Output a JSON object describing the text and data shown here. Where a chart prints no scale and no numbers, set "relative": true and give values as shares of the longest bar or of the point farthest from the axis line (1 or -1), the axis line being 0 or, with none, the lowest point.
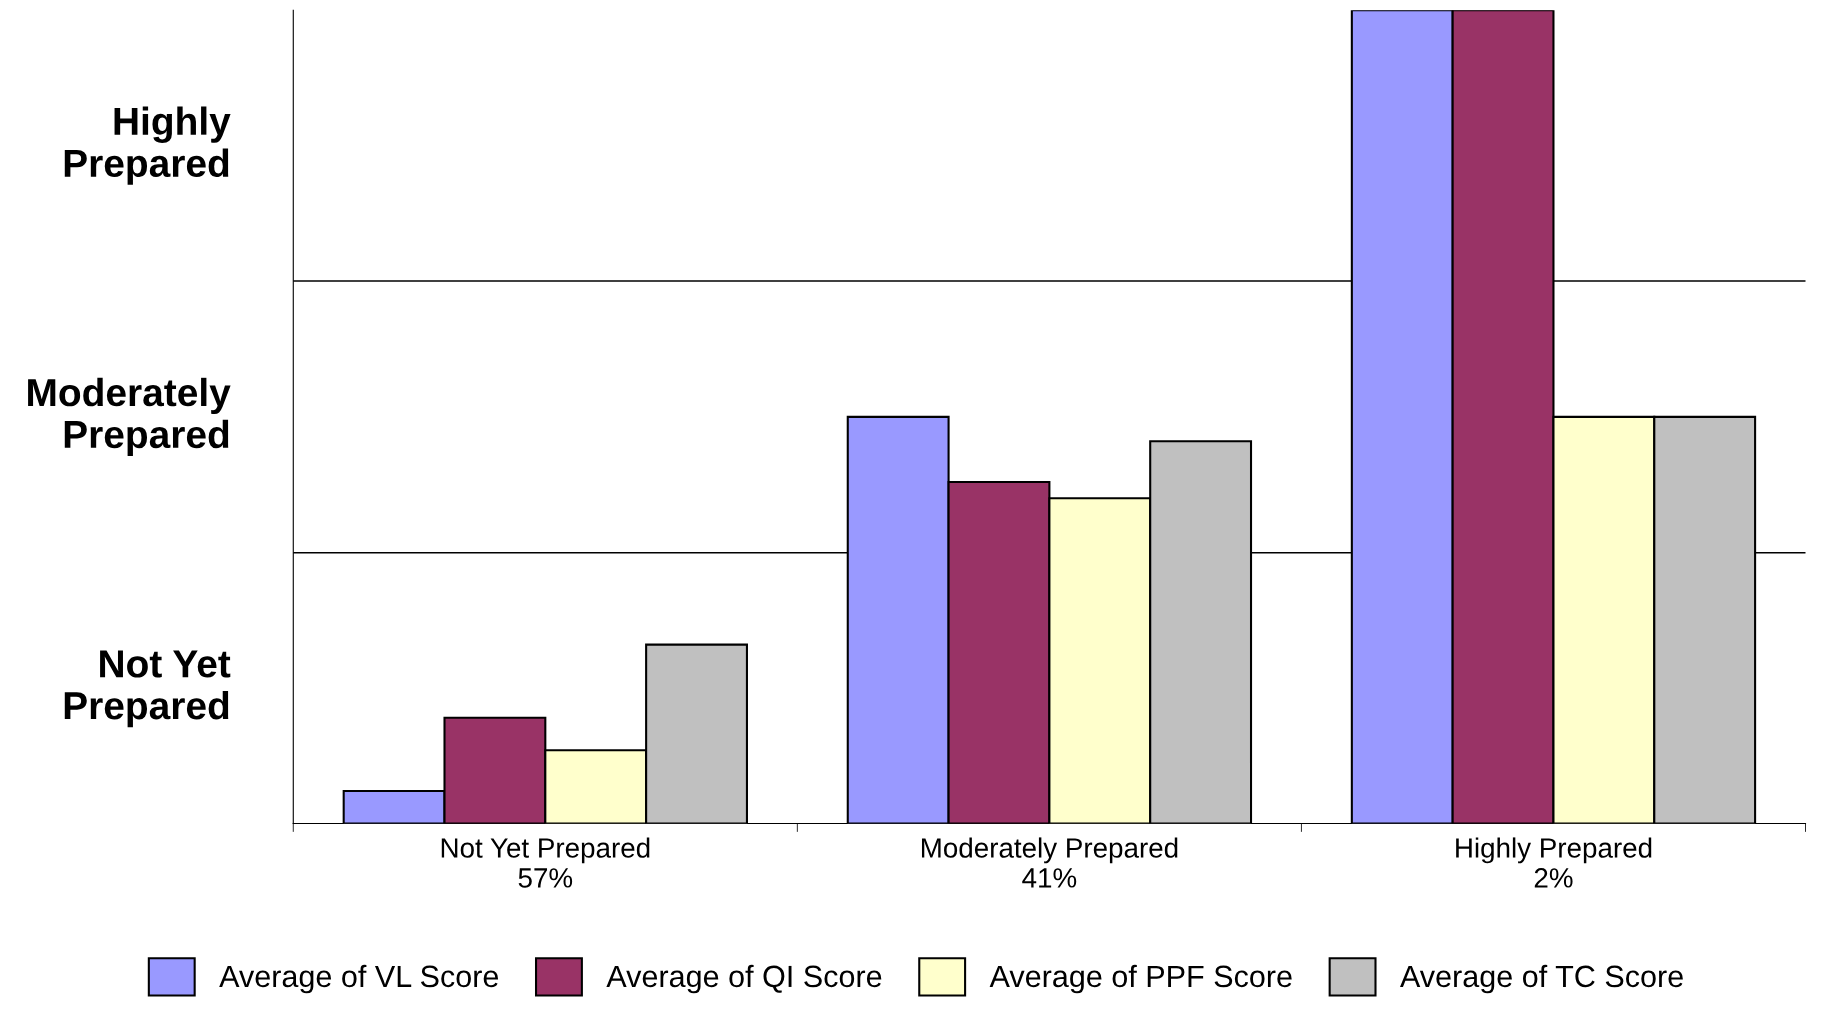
{
  "chart_data": {
    "type": "bar",
    "relative": true,
    "categories": [
      "Not Yet Prepared\n57%",
      "Moderately Prepared\n41%",
      "Highly Prepared\n2%"
    ],
    "series": [
      {
        "name": "Average of VL Score",
        "color": "#9999ff",
        "values": [
          0.04,
          0.5,
          1
        ]
      },
      {
        "name": "Average of QI Score",
        "color": "#993366",
        "values": [
          0.13,
          0.42,
          1
        ]
      },
      {
        "name": "Average of PPF Score",
        "color": "#ffffcc",
        "values": [
          0.09,
          0.4,
          0.5
        ]
      },
      {
        "name": "Average of TC Score",
        "color": "#c0c0c0",
        "values": [
          0.22,
          0.47,
          0.5
        ]
      }
    ],
    "annotations": [
      "Not Yet\nPrepared",
      "Moderately\nPrepared",
      "Highly\nPrepared"
    ],
    "ref_lines": [
      {
        "axis": "y",
        "value": 0.333,
        "color": "#000000"
      },
      {
        "axis": "y",
        "value": 0.667,
        "color": "#000000"
      }
    ],
    "grid": false,
    "legend": "bottom"
  }
}
